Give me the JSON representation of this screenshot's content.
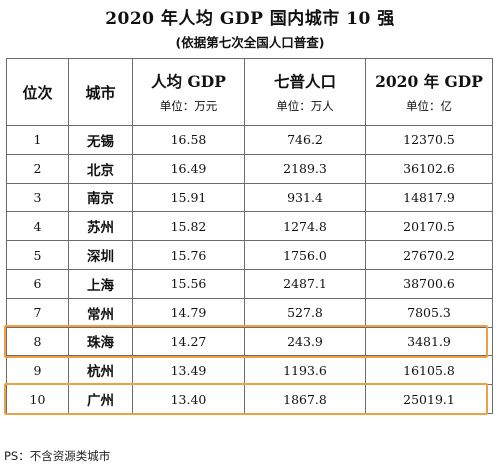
{
  "title": "2020 年人均 GDP 国内城市 10 强",
  "subtitle": "(依据第七次全国人口普查)",
  "columns": [
    {
      "label": "位次"
    },
    {
      "label": "城市"
    },
    {
      "label": "人均 GDP",
      "unit": "单位：万元"
    },
    {
      "label": "七普人口",
      "unit": "单位：万人"
    },
    {
      "label": "2020 年 GDP",
      "unit": "单位：亿"
    }
  ],
  "rows": [
    {
      "rank": "1",
      "city": "无锡",
      "gdp_per_capita": "16.58",
      "population": "746.2",
      "gdp": "12370.5",
      "highlighted": false
    },
    {
      "rank": "2",
      "city": "北京",
      "gdp_per_capita": "16.49",
      "population": "2189.3",
      "gdp": "36102.6",
      "highlighted": false
    },
    {
      "rank": "3",
      "city": "南京",
      "gdp_per_capita": "15.91",
      "population": "931.4",
      "gdp": "14817.9",
      "highlighted": false
    },
    {
      "rank": "4",
      "city": "苏州",
      "gdp_per_capita": "15.82",
      "population": "1274.8",
      "gdp": "20170.5",
      "highlighted": false
    },
    {
      "rank": "5",
      "city": "深圳",
      "gdp_per_capita": "15.76",
      "population": "1756.0",
      "gdp": "27670.2",
      "highlighted": false
    },
    {
      "rank": "6",
      "city": "上海",
      "gdp_per_capita": "15.56",
      "population": "2487.1",
      "gdp": "38700.6",
      "highlighted": false
    },
    {
      "rank": "7",
      "city": "常州",
      "gdp_per_capita": "14.79",
      "population": "527.8",
      "gdp": "7805.3",
      "highlighted": false
    },
    {
      "rank": "8",
      "city": "珠海",
      "gdp_per_capita": "14.27",
      "population": "243.9",
      "gdp": "3481.9",
      "highlighted": true
    },
    {
      "rank": "9",
      "city": "杭州",
      "gdp_per_capita": "13.49",
      "population": "1193.6",
      "gdp": "16105.8",
      "highlighted": false
    },
    {
      "rank": "10",
      "city": "广州",
      "gdp_per_capita": "13.40",
      "population": "1867.8",
      "gdp": "25019.1",
      "highlighted": true
    }
  ],
  "highlight_color": "#f0a040",
  "footnote": "PS：不含资源类城市"
}
